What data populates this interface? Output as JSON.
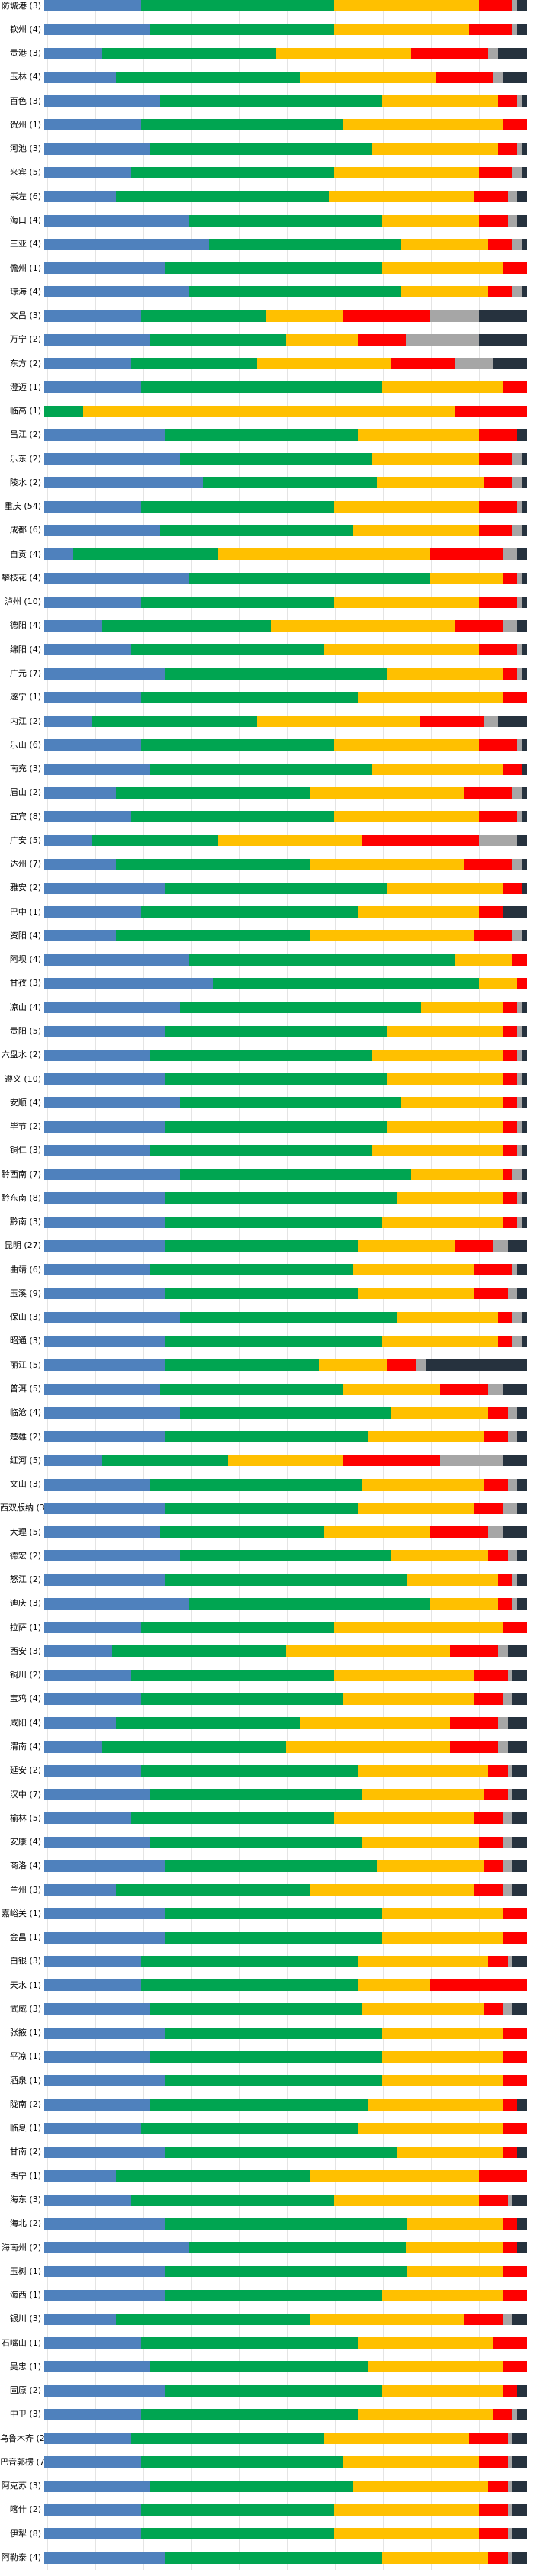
{
  "page": {
    "background": "#ffffff",
    "description_visible_elements": "horizontal stacked percentage bars, one per city, city label with count on left, faint vertical gridlines"
  },
  "chart_data": {
    "type": "bar",
    "orientation": "horizontal",
    "stacked": true,
    "unit": "percent",
    "xlim": [
      0,
      100
    ],
    "grid": true,
    "title": "",
    "xlabel": "",
    "ylabel": "",
    "legend_position": "none",
    "series_order": [
      "blue",
      "green",
      "yellow",
      "red",
      "gray",
      "dark"
    ],
    "series_colors": {
      "blue": "#4f81bd",
      "green": "#00a551",
      "yellow": "#ffc000",
      "red": "#fe0000",
      "gray": "#a6a6a6",
      "dark": "#26323e"
    },
    "rows": [
      {
        "city": "防城港",
        "count": 3,
        "values": [
          20,
          40,
          30,
          7,
          1,
          2
        ]
      },
      {
        "city": "钦州",
        "count": 4,
        "values": [
          22,
          38,
          28,
          9,
          1,
          2
        ]
      },
      {
        "city": "贵港",
        "count": 3,
        "values": [
          12,
          36,
          28,
          16,
          2,
          6
        ]
      },
      {
        "city": "玉林",
        "count": 4,
        "values": [
          15,
          38,
          28,
          12,
          2,
          5
        ]
      },
      {
        "city": "百色",
        "count": 3,
        "values": [
          24,
          46,
          24,
          4,
          1,
          1
        ]
      },
      {
        "city": "贺州",
        "count": 1,
        "values": [
          20,
          42,
          33,
          5,
          0,
          0
        ]
      },
      {
        "city": "河池",
        "count": 3,
        "values": [
          22,
          46,
          26,
          4,
          1,
          1
        ]
      },
      {
        "city": "来宾",
        "count": 5,
        "values": [
          18,
          42,
          30,
          7,
          2,
          1
        ]
      },
      {
        "city": "崇左",
        "count": 6,
        "values": [
          15,
          44,
          30,
          7,
          2,
          2
        ]
      },
      {
        "city": "海口",
        "count": 4,
        "values": [
          30,
          40,
          20,
          6,
          2,
          2
        ]
      },
      {
        "city": "三亚",
        "count": 4,
        "values": [
          34,
          40,
          18,
          5,
          2,
          1
        ]
      },
      {
        "city": "儋州",
        "count": 1,
        "values": [
          25,
          45,
          25,
          5,
          0,
          0
        ]
      },
      {
        "city": "琼海",
        "count": 4,
        "values": [
          30,
          44,
          18,
          5,
          2,
          1
        ]
      },
      {
        "city": "文昌",
        "count": 3,
        "values": [
          20,
          26,
          16,
          18,
          10,
          10
        ]
      },
      {
        "city": "万宁",
        "count": 2,
        "values": [
          22,
          28,
          15,
          10,
          15,
          10
        ]
      },
      {
        "city": "东方",
        "count": 2,
        "values": [
          18,
          26,
          28,
          13,
          8,
          7
        ]
      },
      {
        "city": "澄迈",
        "count": 1,
        "values": [
          20,
          50,
          25,
          5,
          0,
          0
        ]
      },
      {
        "city": "临高",
        "count": 1,
        "values": [
          0,
          8,
          77,
          15,
          0,
          0
        ]
      },
      {
        "city": "昌江",
        "count": 2,
        "values": [
          25,
          40,
          25,
          8,
          0,
          2
        ]
      },
      {
        "city": "乐东",
        "count": 2,
        "values": [
          28,
          40,
          22,
          7,
          2,
          1
        ]
      },
      {
        "city": "陵水",
        "count": 2,
        "values": [
          33,
          36,
          22,
          6,
          2,
          1
        ]
      },
      {
        "city": "重庆",
        "count": 54,
        "values": [
          20,
          40,
          30,
          8,
          1,
          1
        ]
      },
      {
        "city": "成都",
        "count": 6,
        "values": [
          24,
          40,
          26,
          7,
          2,
          1
        ]
      },
      {
        "city": "自贡",
        "count": 4,
        "values": [
          6,
          30,
          44,
          15,
          3,
          2
        ]
      },
      {
        "city": "攀枝花",
        "count": 4,
        "values": [
          30,
          50,
          15,
          3,
          1,
          1
        ]
      },
      {
        "city": "泸州",
        "count": 10,
        "values": [
          20,
          40,
          30,
          8,
          1,
          1
        ]
      },
      {
        "city": "德阳",
        "count": 4,
        "values": [
          12,
          35,
          38,
          10,
          3,
          2
        ]
      },
      {
        "city": "绵阳",
        "count": 4,
        "values": [
          18,
          40,
          32,
          8,
          1,
          1
        ]
      },
      {
        "city": "广元",
        "count": 7,
        "values": [
          25,
          46,
          24,
          3,
          1,
          1
        ]
      },
      {
        "city": "遂宁",
        "count": 1,
        "values": [
          20,
          45,
          30,
          5,
          0,
          0
        ]
      },
      {
        "city": "内江",
        "count": 2,
        "values": [
          10,
          34,
          34,
          13,
          3,
          6
        ]
      },
      {
        "city": "乐山",
        "count": 6,
        "values": [
          20,
          40,
          30,
          8,
          1,
          1
        ]
      },
      {
        "city": "南充",
        "count": 3,
        "values": [
          22,
          46,
          27,
          4,
          0,
          1
        ]
      },
      {
        "city": "眉山",
        "count": 2,
        "values": [
          15,
          40,
          32,
          10,
          2,
          1
        ]
      },
      {
        "city": "宜宾",
        "count": 8,
        "values": [
          18,
          42,
          30,
          8,
          1,
          1
        ]
      },
      {
        "city": "广安",
        "count": 5,
        "values": [
          10,
          26,
          30,
          24,
          8,
          2
        ]
      },
      {
        "city": "达州",
        "count": 7,
        "values": [
          15,
          40,
          32,
          10,
          2,
          1
        ]
      },
      {
        "city": "雅安",
        "count": 2,
        "values": [
          25,
          46,
          24,
          4,
          0,
          1
        ]
      },
      {
        "city": "巴中",
        "count": 1,
        "values": [
          20,
          45,
          25,
          5,
          0,
          5
        ]
      },
      {
        "city": "资阳",
        "count": 4,
        "values": [
          15,
          40,
          34,
          8,
          2,
          1
        ]
      },
      {
        "city": "阿坝",
        "count": 4,
        "values": [
          30,
          55,
          12,
          3,
          0,
          0
        ]
      },
      {
        "city": "甘孜",
        "count": 3,
        "values": [
          35,
          55,
          8,
          2,
          0,
          0
        ]
      },
      {
        "city": "凉山",
        "count": 4,
        "values": [
          28,
          50,
          17,
          3,
          1,
          1
        ]
      },
      {
        "city": "贵阳",
        "count": 5,
        "values": [
          25,
          46,
          24,
          3,
          1,
          1
        ]
      },
      {
        "city": "六盘水",
        "count": 2,
        "values": [
          22,
          46,
          27,
          3,
          1,
          1
        ]
      },
      {
        "city": "遵义",
        "count": 10,
        "values": [
          25,
          46,
          24,
          3,
          1,
          1
        ]
      },
      {
        "city": "安顺",
        "count": 4,
        "values": [
          28,
          46,
          21,
          3,
          1,
          1
        ]
      },
      {
        "city": "毕节",
        "count": 2,
        "values": [
          25,
          46,
          24,
          3,
          1,
          1
        ]
      },
      {
        "city": "铜仁",
        "count": 3,
        "values": [
          22,
          46,
          27,
          3,
          1,
          1
        ]
      },
      {
        "city": "黔西南",
        "count": 7,
        "values": [
          28,
          48,
          19,
          2,
          2,
          1
        ]
      },
      {
        "city": "黔东南",
        "count": 8,
        "values": [
          25,
          48,
          22,
          3,
          1,
          1
        ]
      },
      {
        "city": "黔南",
        "count": 3,
        "values": [
          25,
          45,
          25,
          3,
          1,
          1
        ]
      },
      {
        "city": "昆明",
        "count": 27,
        "values": [
          25,
          40,
          20,
          8,
          3,
          4
        ]
      },
      {
        "city": "曲靖",
        "count": 6,
        "values": [
          22,
          42,
          25,
          8,
          1,
          2
        ]
      },
      {
        "city": "玉溪",
        "count": 9,
        "values": [
          25,
          40,
          24,
          7,
          2,
          2
        ]
      },
      {
        "city": "保山",
        "count": 3,
        "values": [
          28,
          45,
          21,
          3,
          2,
          1
        ]
      },
      {
        "city": "昭通",
        "count": 3,
        "values": [
          25,
          45,
          24,
          3,
          2,
          1
        ]
      },
      {
        "city": "丽江",
        "count": 5,
        "values": [
          25,
          32,
          14,
          6,
          2,
          21
        ]
      },
      {
        "city": "普洱",
        "count": 5,
        "values": [
          24,
          38,
          20,
          10,
          3,
          5
        ]
      },
      {
        "city": "临沧",
        "count": 4,
        "values": [
          28,
          44,
          20,
          4,
          2,
          2
        ]
      },
      {
        "city": "楚雄",
        "count": 2,
        "values": [
          25,
          42,
          24,
          5,
          2,
          2
        ]
      },
      {
        "city": "红河",
        "count": 5,
        "values": [
          12,
          26,
          24,
          20,
          13,
          5
        ]
      },
      {
        "city": "文山",
        "count": 3,
        "values": [
          22,
          44,
          25,
          5,
          2,
          2
        ]
      },
      {
        "city": "西双版纳",
        "count": 3,
        "values": [
          25,
          40,
          24,
          6,
          3,
          2
        ]
      },
      {
        "city": "大理",
        "count": 5,
        "values": [
          24,
          34,
          22,
          12,
          3,
          5
        ]
      },
      {
        "city": "德宏",
        "count": 2,
        "values": [
          28,
          44,
          20,
          4,
          2,
          2
        ]
      },
      {
        "city": "怒江",
        "count": 2,
        "values": [
          25,
          50,
          19,
          3,
          1,
          2
        ]
      },
      {
        "city": "迪庆",
        "count": 3,
        "values": [
          30,
          50,
          14,
          3,
          1,
          2
        ]
      },
      {
        "city": "拉萨",
        "count": 1,
        "values": [
          20,
          40,
          35,
          5,
          0,
          0
        ]
      },
      {
        "city": "西安",
        "count": 3,
        "values": [
          14,
          36,
          34,
          10,
          2,
          4
        ]
      },
      {
        "city": "铜川",
        "count": 2,
        "values": [
          18,
          42,
          29,
          7,
          1,
          3
        ]
      },
      {
        "city": "宝鸡",
        "count": 4,
        "values": [
          20,
          42,
          27,
          6,
          2,
          3
        ]
      },
      {
        "city": "咸阳",
        "count": 4,
        "values": [
          15,
          38,
          31,
          10,
          2,
          4
        ]
      },
      {
        "city": "渭南",
        "count": 4,
        "values": [
          12,
          38,
          34,
          10,
          2,
          4
        ]
      },
      {
        "city": "延安",
        "count": 2,
        "values": [
          20,
          45,
          27,
          4,
          1,
          3
        ]
      },
      {
        "city": "汉中",
        "count": 7,
        "values": [
          22,
          44,
          25,
          5,
          1,
          3
        ]
      },
      {
        "city": "榆林",
        "count": 5,
        "values": [
          18,
          42,
          29,
          6,
          2,
          3
        ]
      },
      {
        "city": "安康",
        "count": 4,
        "values": [
          22,
          44,
          24,
          5,
          2,
          3
        ]
      },
      {
        "city": "商洛",
        "count": 4,
        "values": [
          25,
          44,
          22,
          4,
          2,
          3
        ]
      },
      {
        "city": "兰州",
        "count": 3,
        "values": [
          15,
          40,
          34,
          6,
          2,
          3
        ]
      },
      {
        "city": "嘉峪关",
        "count": 1,
        "values": [
          25,
          45,
          25,
          5,
          0,
          0
        ]
      },
      {
        "city": "金昌",
        "count": 1,
        "values": [
          25,
          45,
          25,
          5,
          0,
          0
        ]
      },
      {
        "city": "白银",
        "count": 3,
        "values": [
          20,
          45,
          27,
          4,
          1,
          3
        ]
      },
      {
        "city": "天水",
        "count": 1,
        "values": [
          20,
          45,
          15,
          20,
          0,
          0
        ]
      },
      {
        "city": "武威",
        "count": 3,
        "values": [
          22,
          44,
          25,
          4,
          2,
          3
        ]
      },
      {
        "city": "张掖",
        "count": 1,
        "values": [
          25,
          45,
          25,
          5,
          0,
          0
        ]
      },
      {
        "city": "平凉",
        "count": 1,
        "values": [
          22,
          48,
          25,
          5,
          0,
          0
        ]
      },
      {
        "city": "酒泉",
        "count": 1,
        "values": [
          25,
          45,
          25,
          5,
          0,
          0
        ]
      },
      {
        "city": "陇南",
        "count": 2,
        "values": [
          22,
          45,
          28,
          3,
          0,
          2
        ]
      },
      {
        "city": "临夏",
        "count": 1,
        "values": [
          20,
          45,
          30,
          5,
          0,
          0
        ]
      },
      {
        "city": "甘南",
        "count": 2,
        "values": [
          25,
          48,
          22,
          3,
          0,
          2
        ]
      },
      {
        "city": "西宁",
        "count": 1,
        "values": [
          15,
          40,
          35,
          10,
          0,
          0
        ]
      },
      {
        "city": "海东",
        "count": 3,
        "values": [
          18,
          42,
          30,
          6,
          1,
          3
        ]
      },
      {
        "city": "海北",
        "count": 2,
        "values": [
          25,
          50,
          20,
          3,
          0,
          2
        ]
      },
      {
        "city": "海南州",
        "count": 2,
        "values": [
          30,
          45,
          20,
          3,
          0,
          2
        ]
      },
      {
        "city": "玉树",
        "count": 1,
        "values": [
          25,
          50,
          20,
          5,
          0,
          0
        ]
      },
      {
        "city": "海西",
        "count": 1,
        "values": [
          25,
          45,
          25,
          5,
          0,
          0
        ]
      },
      {
        "city": "银川",
        "count": 3,
        "values": [
          15,
          40,
          32,
          8,
          2,
          3
        ]
      },
      {
        "city": "石嘴山",
        "count": 1,
        "values": [
          20,
          45,
          28,
          7,
          0,
          0
        ]
      },
      {
        "city": "吴忠",
        "count": 1,
        "values": [
          22,
          45,
          28,
          5,
          0,
          0
        ]
      },
      {
        "city": "固原",
        "count": 2,
        "values": [
          25,
          45,
          25,
          3,
          0,
          2
        ]
      },
      {
        "city": "中卫",
        "count": 3,
        "values": [
          20,
          45,
          28,
          4,
          1,
          2
        ]
      },
      {
        "city": "乌鲁木齐",
        "count": 2,
        "values": [
          18,
          40,
          30,
          8,
          1,
          3
        ]
      },
      {
        "city": "巴音郭楞",
        "count": 7,
        "values": [
          20,
          42,
          28,
          6,
          1,
          3
        ]
      },
      {
        "city": "阿克苏",
        "count": 3,
        "values": [
          22,
          42,
          28,
          4,
          1,
          3
        ]
      },
      {
        "city": "喀什",
        "count": 2,
        "values": [
          20,
          40,
          30,
          6,
          1,
          3
        ]
      },
      {
        "city": "伊犁",
        "count": 8,
        "values": [
          20,
          40,
          30,
          6,
          1,
          3
        ]
      },
      {
        "city": "阿勒泰",
        "count": 4,
        "values": [
          25,
          45,
          22,
          4,
          1,
          3
        ]
      }
    ]
  }
}
